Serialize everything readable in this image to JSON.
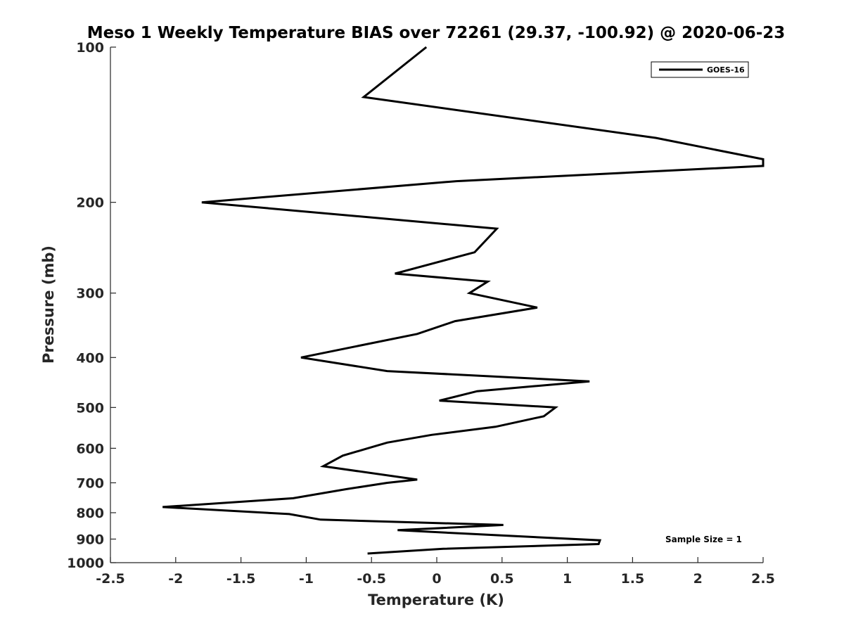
{
  "chart_data": {
    "type": "line",
    "title": "Meso 1 Weekly Temperature BIAS over 72261 (29.37, -100.92) @ 2020-06-23",
    "xlabel": "Temperature (K)",
    "ylabel": "Pressure (mb)",
    "xlim": [
      -2.5,
      2.5
    ],
    "ylim": [
      100,
      1000
    ],
    "yscale": "log",
    "ydirection": "reverse",
    "grid": false,
    "legend_position": "top-right",
    "xticks": [
      -2.5,
      -2,
      -1.5,
      -1,
      -0.5,
      0,
      0.5,
      1,
      1.5,
      2,
      2.5
    ],
    "xtick_labels": [
      "-2.5",
      "-2",
      "-1.5",
      "-1",
      "-0.5",
      "0",
      "0.5",
      "1",
      "1.5",
      "2",
      "2.5"
    ],
    "yticks": [
      100,
      200,
      300,
      400,
      500,
      600,
      700,
      800,
      900,
      1000
    ],
    "ytick_labels": [
      "100",
      "200",
      "300",
      "400",
      "500",
      "600",
      "700",
      "800",
      "900",
      "1000"
    ],
    "series": [
      {
        "name": "GOES-16",
        "color": "#000000",
        "points": [
          {
            "p": 100,
            "t": -0.08
          },
          {
            "p": 125,
            "t": -0.56
          },
          {
            "p": 150,
            "t": 1.68
          },
          {
            "p": 165,
            "t": 2.5
          },
          {
            "p": 170,
            "t": 2.5
          },
          {
            "p": 182,
            "t": 0.15
          },
          {
            "p": 200,
            "t": -1.8
          },
          {
            "p": 225,
            "t": 0.46
          },
          {
            "p": 250,
            "t": 0.29
          },
          {
            "p": 275,
            "t": -0.32
          },
          {
            "p": 285,
            "t": 0.39
          },
          {
            "p": 300,
            "t": 0.25
          },
          {
            "p": 320,
            "t": 0.77
          },
          {
            "p": 340,
            "t": 0.14
          },
          {
            "p": 360,
            "t": -0.15
          },
          {
            "p": 400,
            "t": -1.04
          },
          {
            "p": 425,
            "t": -0.38
          },
          {
            "p": 445,
            "t": 1.17
          },
          {
            "p": 465,
            "t": 0.31
          },
          {
            "p": 485,
            "t": 0.02
          },
          {
            "p": 500,
            "t": 0.91
          },
          {
            "p": 520,
            "t": 0.82
          },
          {
            "p": 545,
            "t": 0.45
          },
          {
            "p": 565,
            "t": -0.04
          },
          {
            "p": 585,
            "t": -0.38
          },
          {
            "p": 620,
            "t": -0.72
          },
          {
            "p": 650,
            "t": -0.87
          },
          {
            "p": 690,
            "t": -0.15
          },
          {
            "p": 700,
            "t": -0.38
          },
          {
            "p": 720,
            "t": -0.69
          },
          {
            "p": 750,
            "t": -1.1
          },
          {
            "p": 780,
            "t": -2.1
          },
          {
            "p": 805,
            "t": -1.13
          },
          {
            "p": 825,
            "t": -0.89
          },
          {
            "p": 845,
            "t": 0.51
          },
          {
            "p": 865,
            "t": -0.3
          },
          {
            "p": 880,
            "t": 0.28
          },
          {
            "p": 905,
            "t": 1.25
          },
          {
            "p": 920,
            "t": 1.24
          },
          {
            "p": 940,
            "t": 0.05
          },
          {
            "p": 960,
            "t": -0.53
          }
        ]
      }
    ],
    "annotation": "Sample Size = 1"
  }
}
